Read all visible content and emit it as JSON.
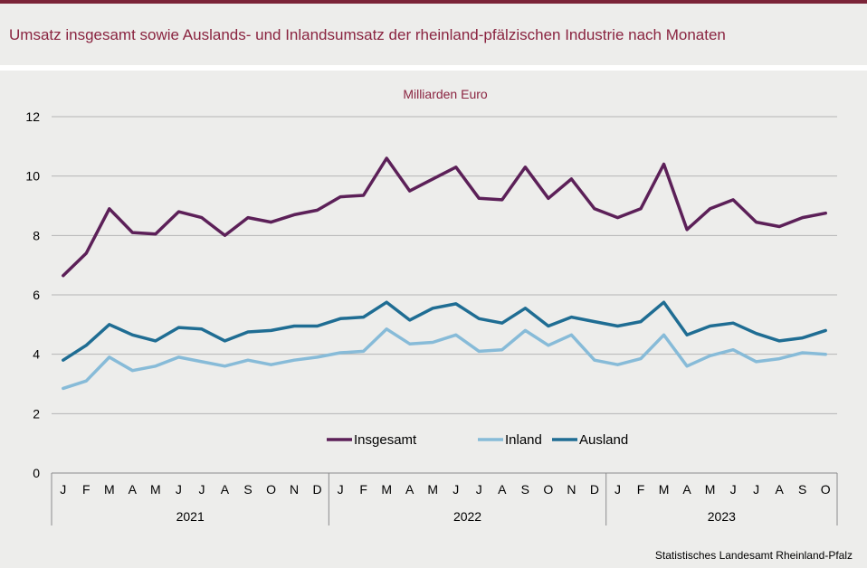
{
  "title": "Umsatz insgesamt sowie Auslands- und Inlandsumsatz der rheinland-pfälzischen Industrie nach Monaten",
  "source": "Statistisches Landesamt Rheinland-Pfalz",
  "colors": {
    "title": "#8a2440",
    "insgesamt": "#5c2058",
    "inland": "#87bbd8",
    "ausland": "#1f6d93",
    "grid": "#b5b5b5"
  },
  "chart_data": {
    "type": "line",
    "ylabel": "Milliarden Euro",
    "ylim": [
      0,
      12
    ],
    "yticks": [
      0,
      2,
      4,
      6,
      8,
      10,
      12
    ],
    "grid": true,
    "legend_position": "bottom-center",
    "categories": [
      "J",
      "F",
      "M",
      "A",
      "M",
      "J",
      "J",
      "A",
      "S",
      "O",
      "N",
      "D",
      "J",
      "F",
      "M",
      "A",
      "M",
      "J",
      "J",
      "A",
      "S",
      "O",
      "N",
      "D",
      "J",
      "F",
      "M",
      "A",
      "M",
      "J",
      "J",
      "A",
      "S",
      "O"
    ],
    "years": [
      {
        "label": "2021",
        "months": 12
      },
      {
        "label": "2022",
        "months": 12
      },
      {
        "label": "2023",
        "months": 10
      }
    ],
    "series": [
      {
        "name": "Insgesamt",
        "color": "#5c2058",
        "values": [
          6.65,
          7.4,
          8.9,
          8.1,
          8.05,
          8.8,
          8.6,
          8.0,
          8.6,
          8.45,
          8.7,
          8.85,
          9.3,
          9.35,
          10.6,
          9.5,
          9.9,
          10.3,
          9.25,
          9.2,
          10.3,
          9.25,
          9.9,
          8.9,
          8.6,
          8.9,
          10.4,
          8.2,
          8.9,
          9.2,
          8.45,
          8.3,
          8.6,
          8.75
        ]
      },
      {
        "name": "Inland",
        "color": "#87bbd8",
        "values": [
          2.85,
          3.1,
          3.9,
          3.45,
          3.6,
          3.9,
          3.75,
          3.6,
          3.8,
          3.65,
          3.8,
          3.9,
          4.05,
          4.1,
          4.85,
          4.35,
          4.4,
          4.65,
          4.1,
          4.15,
          4.8,
          4.3,
          4.65,
          3.8,
          3.65,
          3.85,
          4.65,
          3.6,
          3.95,
          4.15,
          3.75,
          3.85,
          4.05,
          4.0
        ]
      },
      {
        "name": "Ausland",
        "color": "#1f6d93",
        "values": [
          3.8,
          4.3,
          5.0,
          4.65,
          4.45,
          4.9,
          4.85,
          4.45,
          4.75,
          4.8,
          4.95,
          4.95,
          5.2,
          5.25,
          5.75,
          5.15,
          5.55,
          5.7,
          5.2,
          5.05,
          5.55,
          4.95,
          5.25,
          5.1,
          4.95,
          5.1,
          5.75,
          4.65,
          4.95,
          5.05,
          4.7,
          4.45,
          4.55,
          4.8
        ]
      }
    ]
  }
}
